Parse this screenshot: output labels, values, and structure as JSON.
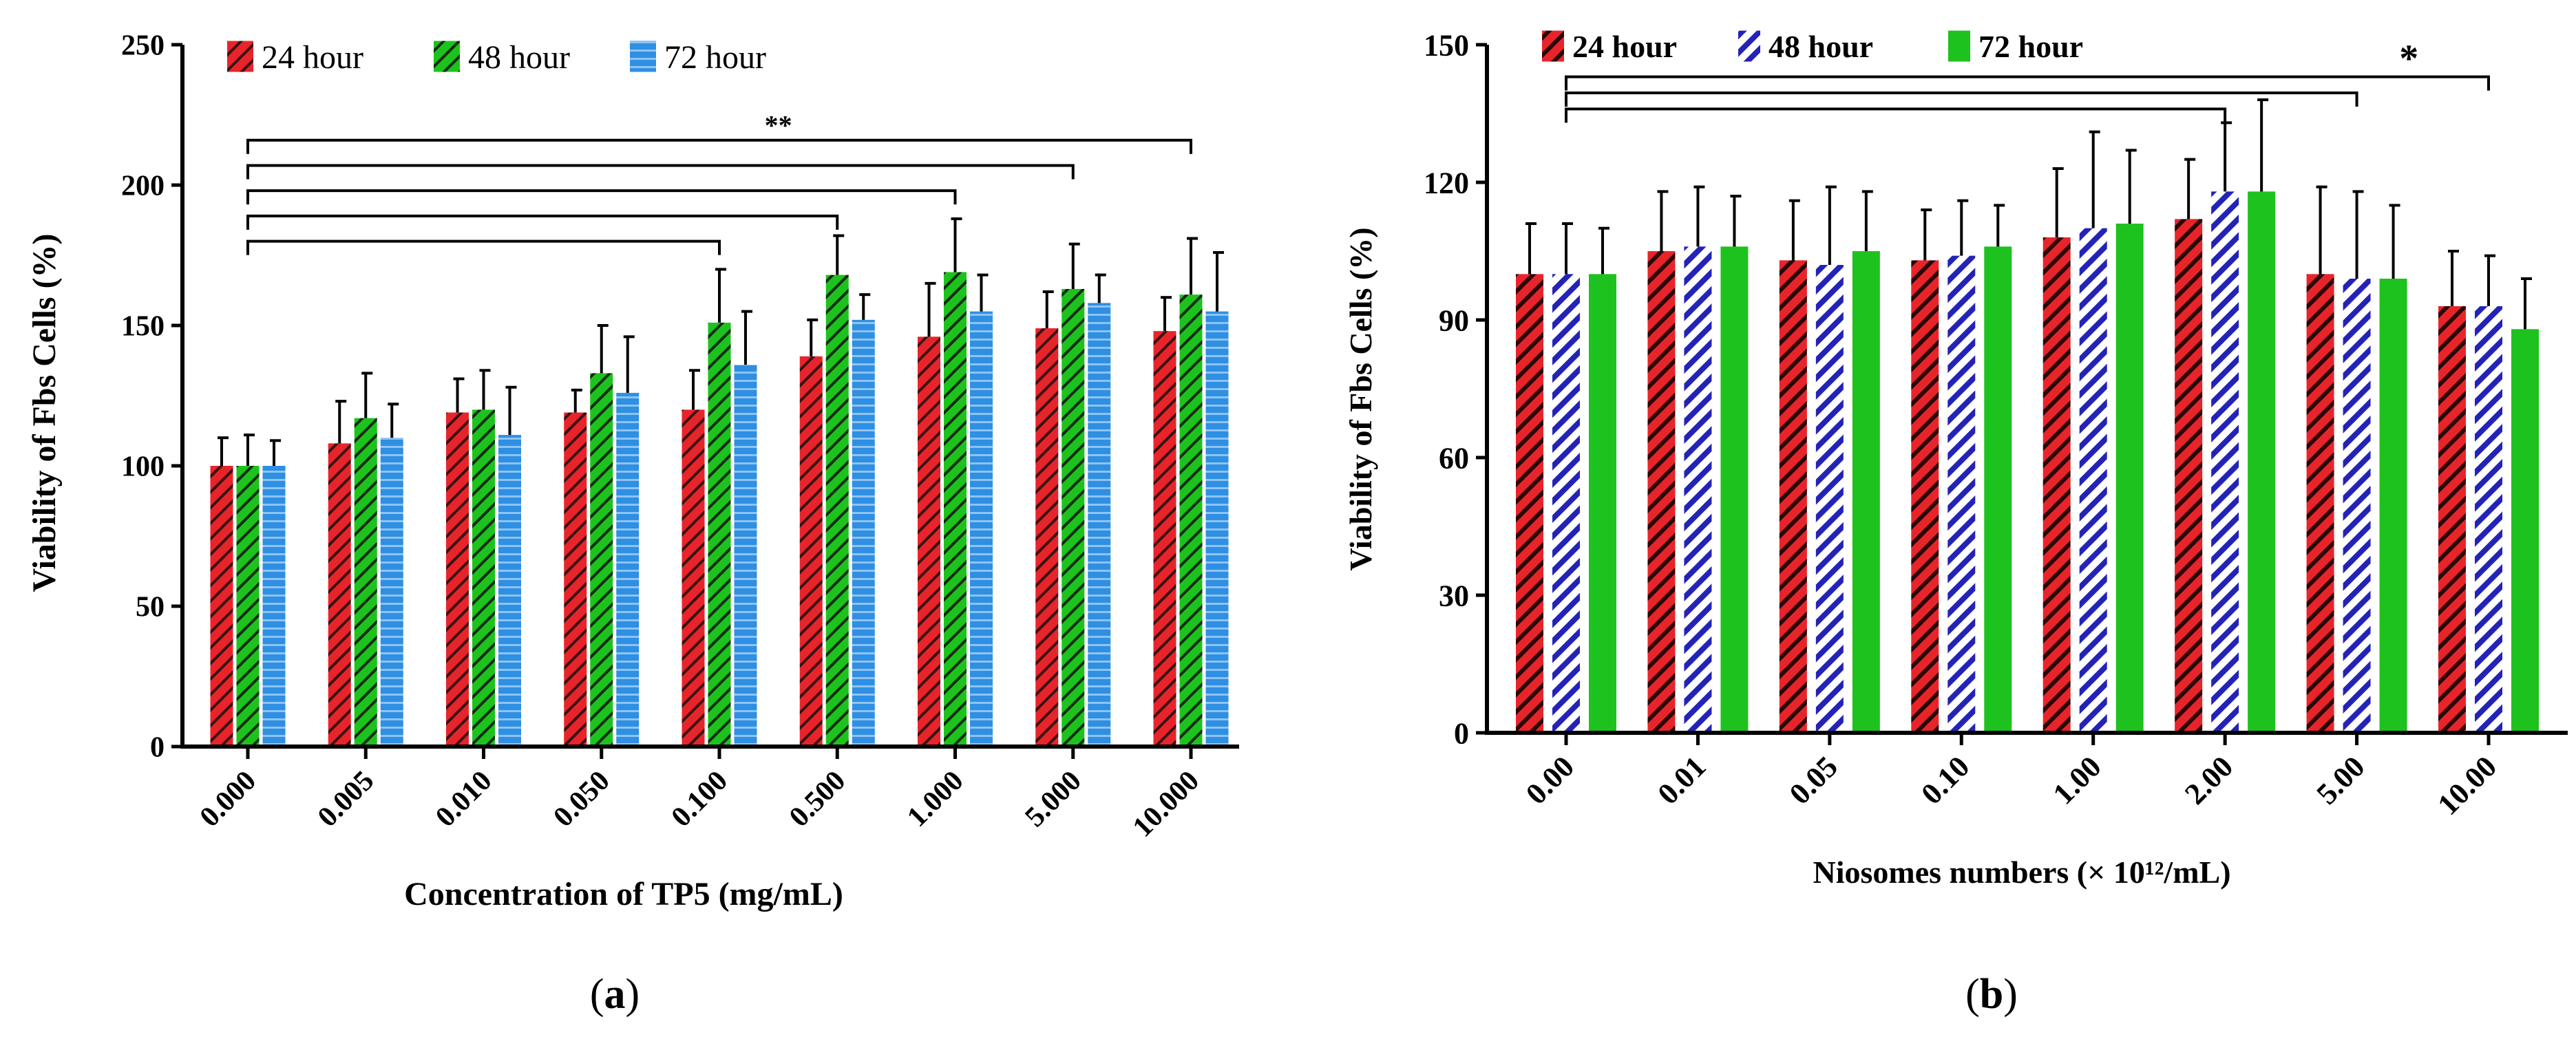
{
  "colors": {
    "red": "#e8242b",
    "green": "#1ec21e",
    "blue": "#2f8fe2",
    "navy": "#2323b8",
    "black": "#000000"
  },
  "chart_data": [
    {
      "type": "bar",
      "panel_label_open": "(",
      "panel_label_letter": "a",
      "panel_label_close": ")",
      "xlabel": "Concentration of TP5 (mg/mL)",
      "ylabel": "Viability of Fbs Cells (%)",
      "ylim": [
        0,
        250
      ],
      "yticks": [
        "0",
        "50",
        "100",
        "150",
        "200",
        "250"
      ],
      "categories": [
        "0.000",
        "0.005",
        "0.010",
        "0.050",
        "0.100",
        "0.500",
        "1.000",
        "5.000",
        "10.000"
      ],
      "legend_position": "top-left",
      "series": [
        {
          "name": "24 hour",
          "color": "red",
          "pattern": "diag-thin",
          "values": [
            100,
            108,
            119,
            119,
            120,
            139,
            146,
            149,
            148
          ],
          "errors": [
            10,
            15,
            12,
            8,
            14,
            13,
            19,
            13,
            12
          ]
        },
        {
          "name": "48 hour",
          "color": "green",
          "pattern": "diag-thin",
          "values": [
            100,
            117,
            120,
            133,
            151,
            168,
            169,
            163,
            161
          ],
          "errors": [
            11,
            16,
            14,
            17,
            19,
            14,
            19,
            16,
            20
          ]
        },
        {
          "name": "72 hour",
          "color": "blue",
          "pattern": "horiz",
          "values": [
            100,
            110,
            111,
            126,
            136,
            152,
            155,
            158,
            155
          ],
          "errors": [
            9,
            12,
            17,
            20,
            19,
            9,
            13,
            10,
            21
          ]
        }
      ],
      "significance": {
        "text": "**",
        "origin_category": 0,
        "targets": [
          4,
          5,
          6,
          7,
          8
        ],
        "levels": [
          180,
          189,
          198,
          207,
          216
        ]
      }
    },
    {
      "type": "bar",
      "panel_label_open": "(",
      "panel_label_letter": "b",
      "panel_label_close": ")",
      "xlabel": "Niosomes numbers (× 10¹²/mL)",
      "ylabel": "Viability of Fbs Cells (%)",
      "ylim": [
        0,
        150
      ],
      "yticks": [
        "0",
        "30",
        "60",
        "90",
        "120",
        "150"
      ],
      "categories": [
        "0.00",
        "0.01",
        "0.05",
        "0.10",
        "1.00",
        "2.00",
        "5.00",
        "10.00"
      ],
      "legend_position": "top-left",
      "series": [
        {
          "name": "24 hour",
          "color": "red",
          "pattern": "diag-thick",
          "values": [
            100,
            105,
            103,
            103,
            108,
            112,
            100,
            93
          ],
          "errors": [
            11,
            13,
            13,
            11,
            15,
            13,
            19,
            12
          ]
        },
        {
          "name": "48 hour",
          "color": "navy",
          "pattern": "diag-white",
          "values": [
            100,
            106,
            102,
            104,
            110,
            118,
            99,
            93
          ],
          "errors": [
            11,
            13,
            17,
            12,
            21,
            15,
            19,
            11
          ]
        },
        {
          "name": "72 hour",
          "color": "green",
          "pattern": "solid",
          "values": [
            100,
            106,
            105,
            106,
            111,
            118,
            99,
            88
          ],
          "errors": [
            10,
            11,
            13,
            9,
            16,
            20,
            16,
            11
          ]
        }
      ],
      "significance": {
        "text": "*",
        "origin_category": 0,
        "targets": [
          5,
          6,
          7
        ],
        "levels": [
          136,
          139.5,
          143
        ]
      }
    }
  ]
}
